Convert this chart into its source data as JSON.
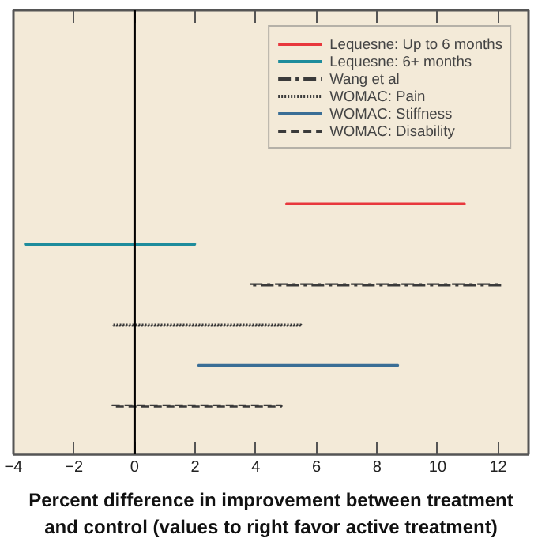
{
  "chart_data": {
    "type": "bar",
    "orientation": "horizontal",
    "categories": [
      null
    ],
    "xlabel": "Percent difference in improvement between treatment and control (values to right favor active treatment)",
    "xlim": [
      -4,
      13
    ],
    "xticks": [
      -4,
      -2,
      0,
      2,
      4,
      6,
      8,
      10,
      12
    ],
    "tick_labels": "x",
    "grid": false,
    "legend": "top right",
    "ref_lines": [
      {
        "axis": "x",
        "value": 0,
        "color": "#000000"
      }
    ],
    "series": [
      {
        "name": "Lequesne: Up to 6 months",
        "color": "#e8383d",
        "base": [
          5.0
        ],
        "values": [
          5.9
        ],
        "line_style": "solid"
      },
      {
        "name": "Lequesne: 6+ months",
        "color": "#1e8c9c",
        "base": [
          -3.6
        ],
        "values": [
          5.6
        ],
        "line_style": "solid"
      },
      {
        "name": "Wang et al",
        "color": "#3a3a3a",
        "base": [
          3.8
        ],
        "values": [
          8.3
        ],
        "line_style": "dashdot"
      },
      {
        "name": "WOMAC: Pain",
        "color": "#3a3a3a",
        "base": [
          -0.7
        ],
        "values": [
          6.2
        ],
        "line_style": "dotted"
      },
      {
        "name": "WOMAC: Stiffness",
        "color": "#3a6e96",
        "base": [
          2.1
        ],
        "values": [
          6.6
        ],
        "line_style": "solid"
      },
      {
        "name": "WOMAC: Disability",
        "color": "#3a3a3a",
        "base": [
          -0.75
        ],
        "values": [
          5.6
        ],
        "line_style": "dashed"
      }
    ]
  }
}
